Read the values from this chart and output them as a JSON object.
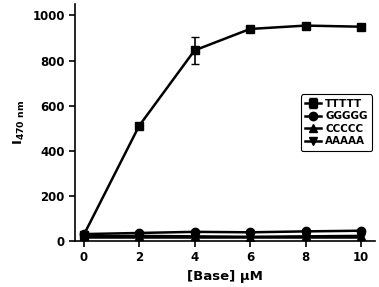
{
  "x": [
    0,
    2,
    4,
    6,
    8,
    10
  ],
  "series": {
    "TTTTT": {
      "y": [
        25,
        510,
        845,
        940,
        955,
        950
      ],
      "yerr": [
        0,
        0,
        60,
        0,
        0,
        0
      ],
      "marker": "s",
      "color": "#000000",
      "linewidth": 1.8
    },
    "GGGGG": {
      "y": [
        30,
        35,
        40,
        38,
        42,
        45
      ],
      "yerr": [
        0,
        0,
        0,
        0,
        0,
        0
      ],
      "marker": "o",
      "color": "#000000",
      "linewidth": 1.8
    },
    "CCCCC": {
      "y": [
        20,
        22,
        20,
        18,
        20,
        22
      ],
      "yerr": [
        0,
        0,
        0,
        0,
        0,
        0
      ],
      "marker": "^",
      "color": "#000000",
      "linewidth": 1.8
    },
    "AAAAA": {
      "y": [
        15,
        15,
        15,
        15,
        15,
        15
      ],
      "yerr": [
        0,
        0,
        0,
        0,
        0,
        0
      ],
      "marker": "v",
      "color": "#000000",
      "linewidth": 1.8
    }
  },
  "xlabel": "[Base] μM",
  "ylabel": "I",
  "ylabel_sub": "470 nm",
  "xlim": [
    -0.3,
    10.5
  ],
  "ylim": [
    0,
    1050
  ],
  "xticks": [
    0,
    2,
    4,
    6,
    8,
    10
  ],
  "yticks": [
    0,
    200,
    400,
    600,
    800,
    1000
  ],
  "legend_loc": "center right",
  "background_color": "#ffffff",
  "markersize": 6,
  "legend_fontsize": 7.5,
  "axis_fontsize": 9.5,
  "tick_fontsize": 8.5
}
